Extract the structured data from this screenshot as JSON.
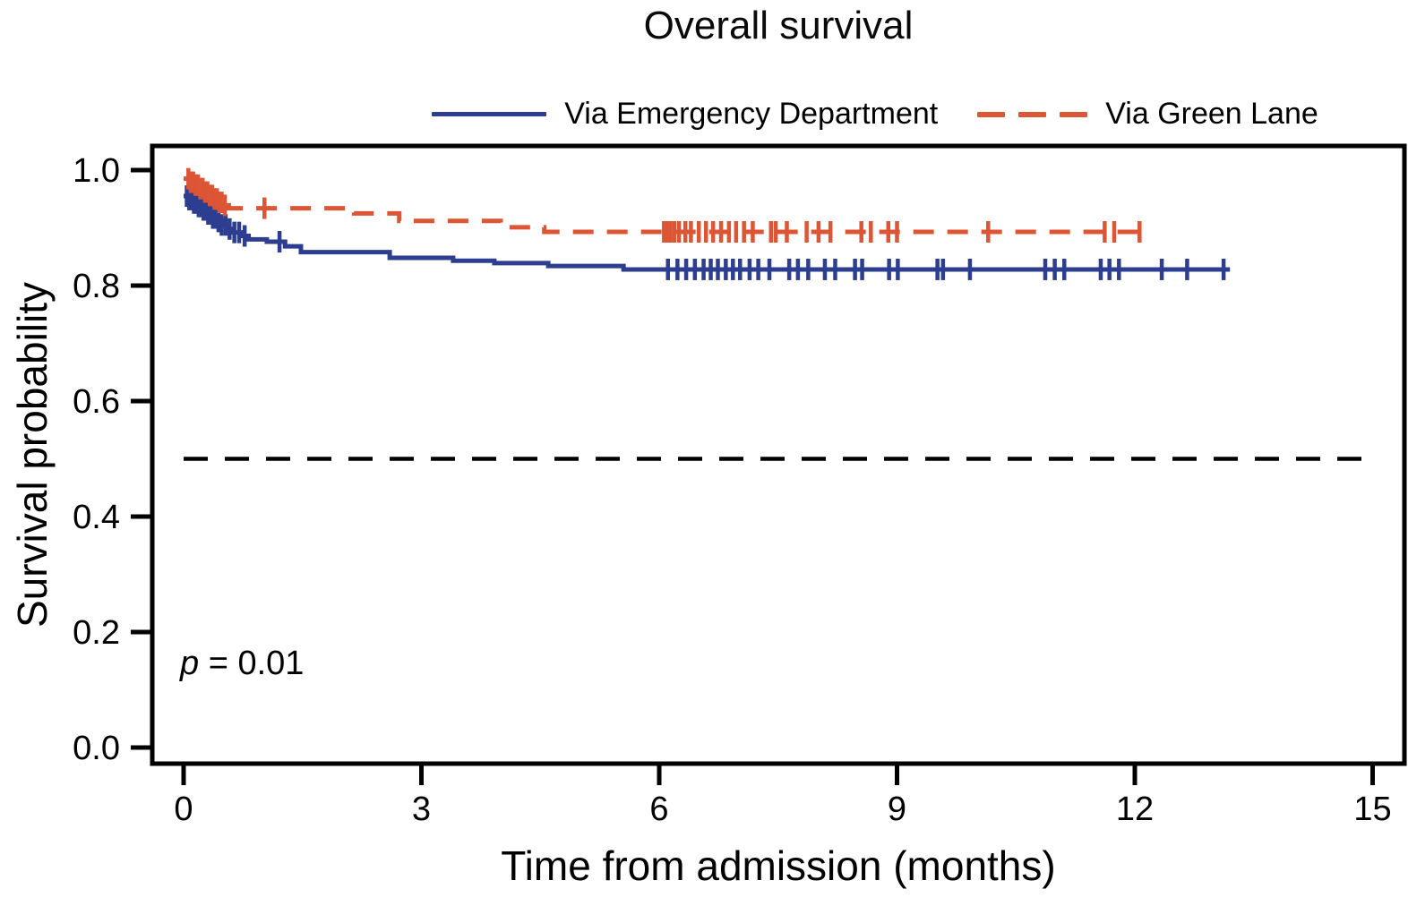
{
  "title": "Overall survival",
  "axes": {
    "x_label": "Time from admission (months)",
    "y_label": "Survival probability"
  },
  "annotation": {
    "p_italic": "p",
    "p_rest": " = 0.01"
  },
  "chart_data": {
    "type": "line",
    "subtype": "kaplan-meier-step",
    "title": "Overall survival",
    "xlabel": "Time from admission (months)",
    "ylabel": "Survival probability",
    "xlim": [
      0,
      15
    ],
    "ylim": [
      0.0,
      1.0
    ],
    "x_ticks": [
      "0",
      "3",
      "6",
      "9",
      "12",
      "15"
    ],
    "y_ticks": [
      "1.0",
      "0.8",
      "0.6",
      "0.4",
      "0.2",
      "0.0"
    ],
    "grid": "off",
    "legend_position": "top",
    "reference_line": {
      "y": 0.5,
      "color": "#000000",
      "style": "dashed"
    },
    "p_value": "p = 0.01",
    "series": [
      {
        "name": "Via Emergency Department",
        "color": "#2d3d90",
        "line": "solid",
        "steps": [
          [
            0,
            0.955
          ],
          [
            0.06,
            0.949
          ],
          [
            0.12,
            0.943
          ],
          [
            0.18,
            0.937
          ],
          [
            0.24,
            0.931
          ],
          [
            0.3,
            0.924
          ],
          [
            0.36,
            0.917
          ],
          [
            0.42,
            0.911
          ],
          [
            0.48,
            0.905
          ],
          [
            0.55,
            0.898
          ],
          [
            0.63,
            0.892
          ],
          [
            0.72,
            0.886
          ],
          [
            0.82,
            0.88
          ],
          [
            1.05,
            0.876
          ],
          [
            1.28,
            0.868
          ],
          [
            1.48,
            0.858
          ],
          [
            2.6,
            0.848
          ],
          [
            3.4,
            0.843
          ],
          [
            3.92,
            0.839
          ],
          [
            4.6,
            0.834
          ],
          [
            5.55,
            0.828
          ]
        ],
        "end_time": 13.2,
        "censor_times": [
          0.04,
          0.07,
          0.1,
          0.13,
          0.16,
          0.19,
          0.22,
          0.25,
          0.28,
          0.31,
          0.34,
          0.37,
          0.4,
          0.44,
          0.48,
          0.53,
          0.58,
          0.64,
          0.7,
          0.77,
          1.21,
          6.11,
          6.23,
          6.34,
          6.45,
          6.56,
          6.65,
          6.74,
          6.84,
          6.93,
          7.02,
          7.14,
          7.25,
          7.39,
          7.64,
          7.75,
          7.88,
          8.09,
          8.22,
          8.47,
          8.56,
          8.9,
          9.01,
          9.51,
          9.58,
          9.92,
          10.87,
          10.99,
          11.11,
          11.57,
          11.68,
          11.8,
          12.34,
          12.66,
          13.12
        ]
      },
      {
        "name": "Via Green Lane",
        "color": "#dc5535",
        "line": "dashed",
        "steps": [
          [
            0,
            0.985
          ],
          [
            0.08,
            0.979
          ],
          [
            0.14,
            0.974
          ],
          [
            0.2,
            0.968
          ],
          [
            0.26,
            0.962
          ],
          [
            0.32,
            0.956
          ],
          [
            0.38,
            0.95
          ],
          [
            0.44,
            0.944
          ],
          [
            0.5,
            0.939
          ],
          [
            0.57,
            0.934
          ],
          [
            2.15,
            0.925
          ],
          [
            2.72,
            0.912
          ],
          [
            4.0,
            0.901
          ],
          [
            4.55,
            0.893
          ]
        ],
        "end_time": 12.2,
        "censor_times": [
          0.06,
          0.09,
          0.12,
          0.15,
          0.18,
          0.21,
          0.24,
          0.27,
          0.3,
          0.33,
          0.36,
          0.39,
          0.42,
          0.45,
          0.48,
          0.52,
          1.02,
          6.06,
          6.1,
          6.14,
          6.19,
          6.25,
          6.33,
          6.4,
          6.5,
          6.59,
          6.68,
          6.78,
          6.88,
          6.97,
          7.07,
          7.18,
          7.41,
          7.47,
          7.61,
          7.86,
          8.01,
          8.16,
          8.55,
          8.67,
          8.89,
          9.0,
          10.15,
          11.62,
          11.74,
          12.06
        ]
      }
    ]
  }
}
